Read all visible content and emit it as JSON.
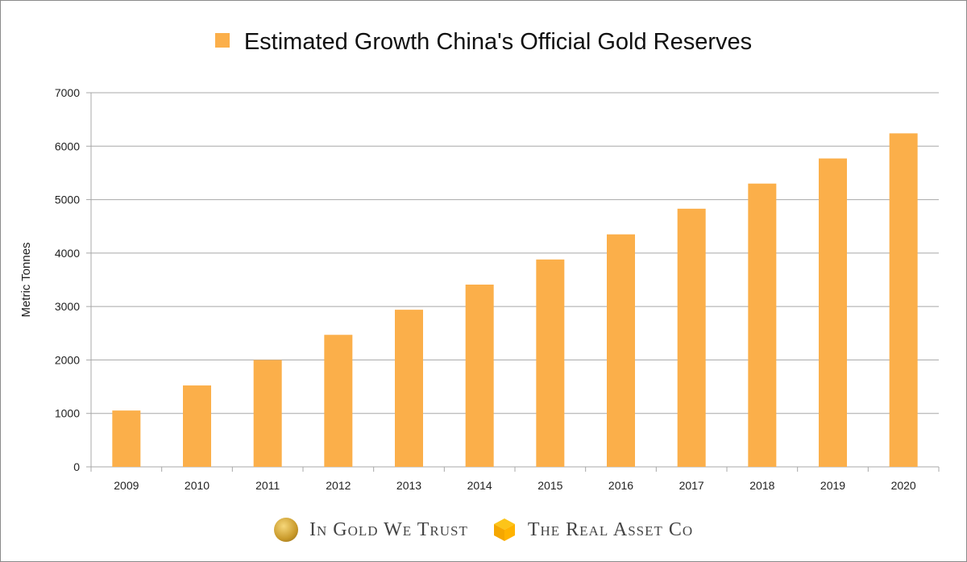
{
  "chart_data": {
    "type": "bar",
    "title": "Estimated Growth China's Official Gold Reserves",
    "legend": [
      {
        "name": "Estimated Growth China's Official Gold Reserves",
        "color": "#fbaf4a"
      }
    ],
    "legend_position": "top-center",
    "xlabel": "",
    "ylabel": "Metric Tonnes",
    "ylim": [
      0,
      7000
    ],
    "yticks": [
      0,
      1000,
      2000,
      3000,
      4000,
      5000,
      6000,
      7000
    ],
    "grid": true,
    "categories": [
      "2009",
      "2010",
      "2011",
      "2012",
      "2013",
      "2014",
      "2015",
      "2016",
      "2017",
      "2018",
      "2019",
      "2020"
    ],
    "series": [
      {
        "name": "Estimated Growth China's Official Gold Reserves",
        "color": "#fbaf4a",
        "values": [
          1054,
          1523,
          2000,
          2470,
          2940,
          3410,
          3880,
          4350,
          4830,
          5300,
          5770,
          6240
        ]
      }
    ]
  },
  "footer": {
    "brand1": "In Gold We Trust",
    "brand2": "The Real Asset Co",
    "brand1_icon": "gold-coin-icon",
    "brand2_icon": "gold-cube-icon"
  }
}
